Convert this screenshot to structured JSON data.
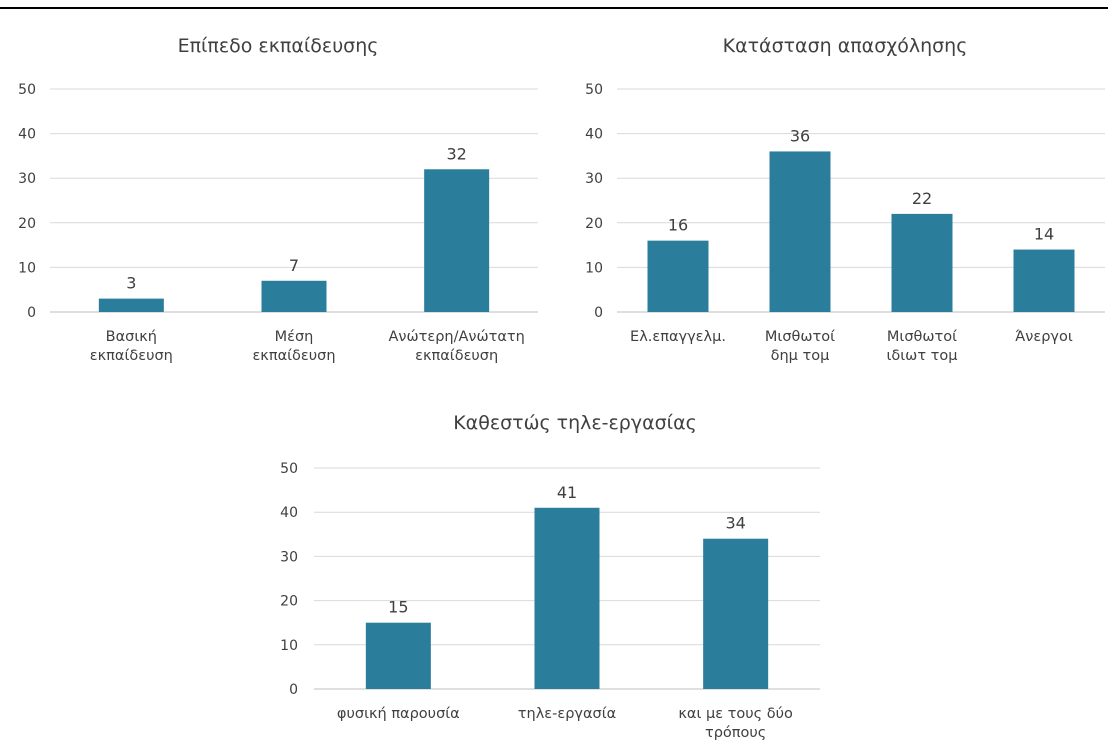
{
  "colors": {
    "bar": "#2a7d9b",
    "text": "#404040",
    "grid": "#d9d9d9"
  },
  "chart_data": [
    {
      "type": "bar",
      "title": "Επίπεδο εκπαίδευσης",
      "categories": [
        [
          "Βασική",
          "εκπαίδευση"
        ],
        [
          "Μέση",
          "εκπαίδευση"
        ],
        [
          "Ανώτερη/Ανώτατη",
          "εκπαίδευση"
        ]
      ],
      "values": [
        3,
        7,
        32
      ],
      "ylim": [
        0,
        50
      ],
      "yticks": [
        0,
        10,
        20,
        30,
        40,
        50
      ],
      "grid": true,
      "xlabel": "",
      "ylabel": ""
    },
    {
      "type": "bar",
      "title": "Κατάσταση απασχόλησης",
      "categories": [
        [
          "Ελ.επαγγελμ."
        ],
        [
          "Μισθωτοί",
          "δημ τομ"
        ],
        [
          "Μισθωτοί",
          "ιδιωτ τομ"
        ],
        [
          "Άνεργοι"
        ]
      ],
      "values": [
        16,
        36,
        22,
        14
      ],
      "ylim": [
        0,
        50
      ],
      "yticks": [
        0,
        10,
        20,
        30,
        40,
        50
      ],
      "grid": true,
      "xlabel": "",
      "ylabel": ""
    },
    {
      "type": "bar",
      "title": "Καθεστώς τηλε-εργασίας",
      "categories": [
        [
          "φυσική παρουσία"
        ],
        [
          "τηλε-εργασία"
        ],
        [
          "και με τους δύο",
          "τρόπους"
        ]
      ],
      "values": [
        15,
        41,
        34
      ],
      "ylim": [
        0,
        50
      ],
      "yticks": [
        0,
        10,
        20,
        30,
        40,
        50
      ],
      "grid": true,
      "xlabel": "",
      "ylabel": ""
    }
  ]
}
